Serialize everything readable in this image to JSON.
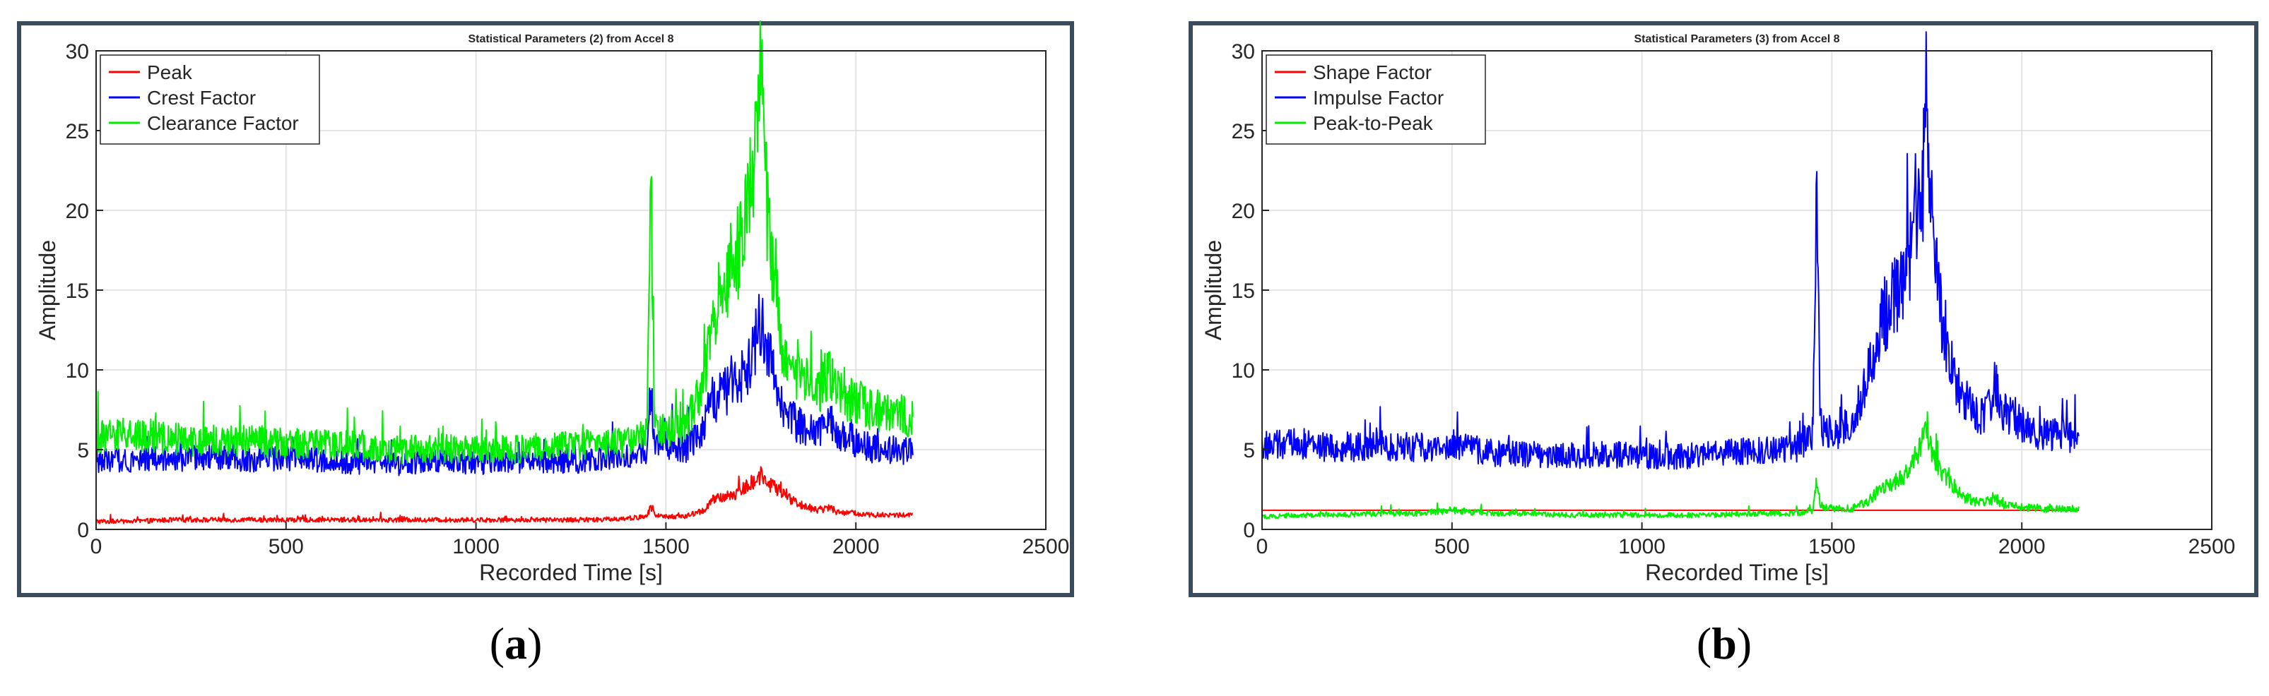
{
  "captions": {
    "a": {
      "open": "(",
      "letter": "a",
      "close": ")"
    },
    "b": {
      "open": "(",
      "letter": "b",
      "close": ")"
    }
  },
  "chart_data": [
    {
      "type": "line",
      "title": "Statistical Parameters (2) from Accel 8",
      "xlabel": "Recorded Time [s]",
      "ylabel": "Amplitude",
      "xlim": [
        0,
        2500
      ],
      "ylim": [
        0,
        30
      ],
      "xticks": [
        0,
        500,
        1000,
        1500,
        2000,
        2500
      ],
      "yticks": [
        0,
        5,
        10,
        15,
        20,
        25,
        30
      ],
      "grid": true,
      "legend": "top-left",
      "x": [
        0,
        100,
        200,
        300,
        400,
        500,
        600,
        700,
        800,
        900,
        1000,
        1100,
        1200,
        1300,
        1400,
        1450,
        1460,
        1470,
        1500,
        1550,
        1600,
        1620,
        1650,
        1680,
        1700,
        1720,
        1740,
        1750,
        1760,
        1780,
        1800,
        1850,
        1900,
        1930,
        1950,
        2000,
        2050,
        2100,
        2150
      ],
      "series": [
        {
          "name": "Peak",
          "color": "#ff0000",
          "values": [
            0.5,
            0.5,
            0.6,
            0.6,
            0.6,
            0.6,
            0.6,
            0.6,
            0.6,
            0.6,
            0.6,
            0.6,
            0.6,
            0.6,
            0.7,
            0.8,
            1.5,
            0.9,
            0.8,
            0.8,
            1.2,
            1.8,
            2.0,
            2.2,
            2.5,
            2.8,
            3.2,
            3.5,
            3.0,
            2.8,
            2.3,
            1.6,
            1.2,
            1.4,
            1.1,
            1.0,
            0.9,
            0.9,
            0.9
          ]
        },
        {
          "name": "Crest Factor",
          "color": "#0000ff",
          "values": [
            4.3,
            4.4,
            4.4,
            4.5,
            4.3,
            4.5,
            4.3,
            4.2,
            4.1,
            4.3,
            4.2,
            4.2,
            4.3,
            4.3,
            4.5,
            5.0,
            9.0,
            5.5,
            5.3,
            5.0,
            6.5,
            8.0,
            8.5,
            9.0,
            9.5,
            10.5,
            12.0,
            13.0,
            11.5,
            10.0,
            8.0,
            6.5,
            6.0,
            7.0,
            6.0,
            5.5,
            5.0,
            5.0,
            4.8
          ]
        },
        {
          "name": "Clearance Factor",
          "color": "#00ee00",
          "values": [
            5.8,
            6.0,
            5.7,
            5.5,
            5.6,
            5.4,
            5.3,
            5.2,
            5.0,
            5.1,
            5.0,
            5.0,
            5.2,
            5.3,
            5.4,
            6.0,
            22.7,
            6.5,
            6.3,
            6.5,
            9.0,
            13.0,
            15.5,
            17.0,
            18.0,
            21.0,
            26.0,
            29.7,
            22.0,
            17.0,
            12.0,
            9.5,
            8.5,
            10.0,
            8.5,
            8.0,
            7.5,
            7.3,
            7.0
          ]
        }
      ]
    },
    {
      "type": "line",
      "title": "Statistical Parameters (3) from Accel 8",
      "xlabel": "Recorded Time [s]",
      "ylabel": "Amplitude",
      "xlim": [
        0,
        2500
      ],
      "ylim": [
        0,
        30
      ],
      "xticks": [
        0,
        500,
        1000,
        1500,
        2000,
        2500
      ],
      "yticks": [
        0,
        5,
        10,
        15,
        20,
        25,
        30
      ],
      "grid": true,
      "legend": "top-left",
      "x": [
        0,
        100,
        200,
        300,
        400,
        500,
        600,
        700,
        800,
        900,
        1000,
        1100,
        1200,
        1300,
        1400,
        1450,
        1460,
        1470,
        1500,
        1550,
        1600,
        1620,
        1650,
        1680,
        1700,
        1720,
        1740,
        1750,
        1760,
        1780,
        1800,
        1850,
        1900,
        1930,
        1950,
        2000,
        2050,
        2100,
        2150
      ],
      "series": [
        {
          "name": "Shape Factor",
          "color": "#ff0000",
          "values": [
            1.2,
            1.2,
            1.2,
            1.2,
            1.2,
            1.2,
            1.2,
            1.2,
            1.2,
            1.2,
            1.2,
            1.2,
            1.2,
            1.2,
            1.2,
            1.2,
            1.2,
            1.2,
            1.2,
            1.2,
            1.2,
            1.2,
            1.2,
            1.2,
            1.2,
            1.2,
            1.2,
            1.2,
            1.2,
            1.2,
            1.2,
            1.2,
            1.2,
            1.2,
            1.2,
            1.2,
            1.2,
            1.2,
            1.2
          ]
        },
        {
          "name": "Impulse Factor",
          "color": "#0000ff",
          "values": [
            5.2,
            5.4,
            5.0,
            5.3,
            5.1,
            5.4,
            4.8,
            4.7,
            4.6,
            4.7,
            4.6,
            4.6,
            4.8,
            4.9,
            5.0,
            6.0,
            20.3,
            6.5,
            6.0,
            6.5,
            10.0,
            12.5,
            14.0,
            15.0,
            16.0,
            18.5,
            22.0,
            25.4,
            20.0,
            15.0,
            11.0,
            8.0,
            7.0,
            9.0,
            7.5,
            6.5,
            6.0,
            6.0,
            5.5
          ]
        },
        {
          "name": "Peak-to-Peak",
          "color": "#00ee00",
          "values": [
            0.8,
            0.9,
            0.9,
            1.0,
            1.0,
            1.2,
            1.0,
            1.0,
            0.9,
            0.9,
            0.9,
            0.9,
            0.9,
            1.0,
            1.0,
            1.2,
            3.0,
            1.5,
            1.3,
            1.3,
            1.8,
            2.4,
            2.8,
            3.2,
            3.6,
            4.2,
            5.5,
            6.8,
            5.0,
            4.0,
            3.2,
            2.0,
            1.6,
            2.0,
            1.5,
            1.4,
            1.3,
            1.3,
            1.3
          ]
        }
      ]
    }
  ]
}
